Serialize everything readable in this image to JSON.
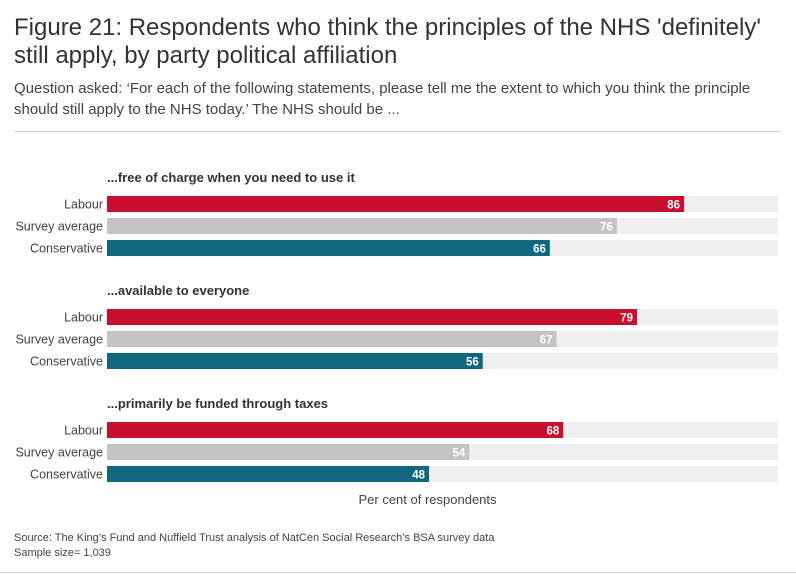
{
  "header": {
    "title": "Figure 21: Respondents who think the principles of the NHS 'definitely' still apply, by party political affiliation",
    "subtitle": "Question asked: ‘For each of the following statements, please tell me the extent to which you think the principle should still apply to the NHS today.’ The NHS should be ..."
  },
  "chart_data": {
    "type": "bar",
    "orientation": "horizontal",
    "xlabel": "Per cent of respondents",
    "xlim": [
      0,
      100
    ],
    "series_names": [
      "Labour",
      "Survey average",
      "Conservative"
    ],
    "colors": {
      "Labour": "#c8102e",
      "Survey average": "#c4c4c4",
      "Conservative": "#11687e",
      "track": "#efefef"
    },
    "groups": [
      {
        "title": "...free of charge when you need to use it",
        "values": [
          86,
          76,
          66
        ]
      },
      {
        "title": "...available to everyone",
        "values": [
          79,
          67,
          56
        ]
      },
      {
        "title": "...primarily be funded through taxes",
        "values": [
          68,
          54,
          48
        ]
      }
    ]
  },
  "footer": {
    "source": "Source: The King’s Fund and Nuffield Trust analysis of NatCen Social Research’s BSA survey data",
    "sample": "Sample size= 1,039"
  }
}
